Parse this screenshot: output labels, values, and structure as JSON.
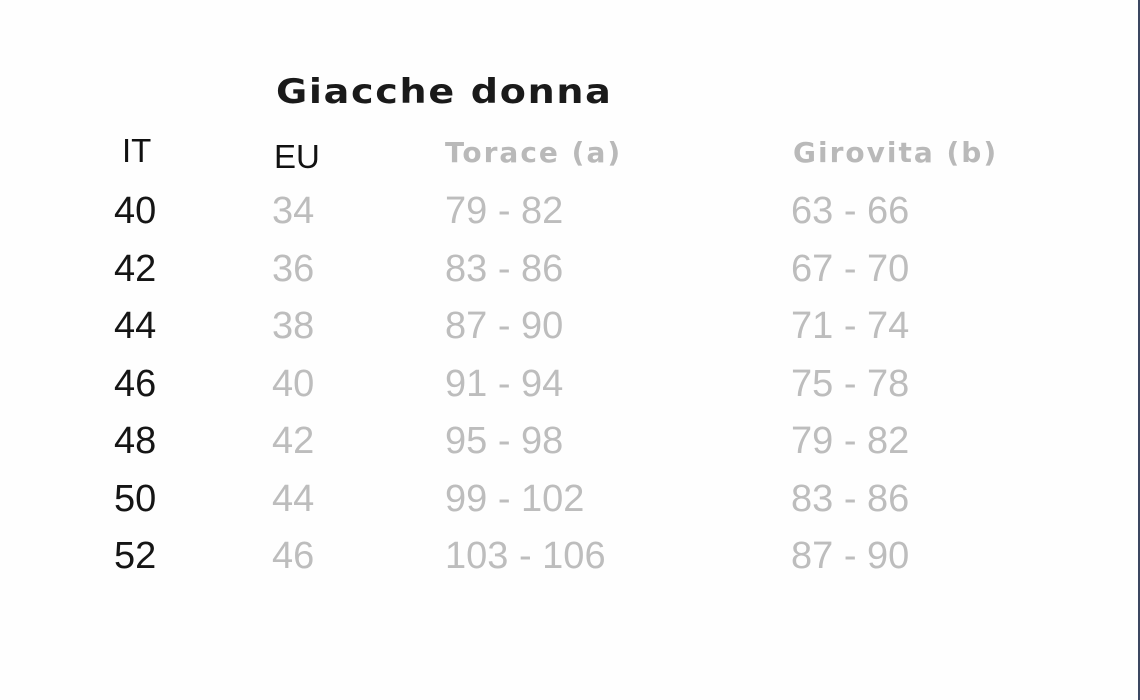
{
  "title": "Giacche donna",
  "headers": {
    "it": "IT",
    "eu": "EU",
    "torace": "Torace (a)",
    "girovita": "Girovita (b)"
  },
  "rows": [
    {
      "it": "40",
      "eu": "34",
      "torace": "79 - 82",
      "girovita": "63 - 66"
    },
    {
      "it": "42",
      "eu": "36",
      "torace": "83 - 86",
      "girovita": "67 - 70"
    },
    {
      "it": "44",
      "eu": "38",
      "torace": "87 - 90",
      "girovita": "71 - 74"
    },
    {
      "it": "46",
      "eu": "40",
      "torace": "91 - 94",
      "girovita": "75 - 78"
    },
    {
      "it": "48",
      "eu": "42",
      "torace": "95 - 98",
      "girovita": "79 - 82"
    },
    {
      "it": "50",
      "eu": "44",
      "torace": "99 - 102",
      "girovita": "83 - 86"
    },
    {
      "it": "52",
      "eu": "46",
      "torace": "103 - 106",
      "girovita": "87 - 90"
    }
  ],
  "colors": {
    "primary_text": "#151515",
    "secondary_text": "#bdbdbd"
  }
}
